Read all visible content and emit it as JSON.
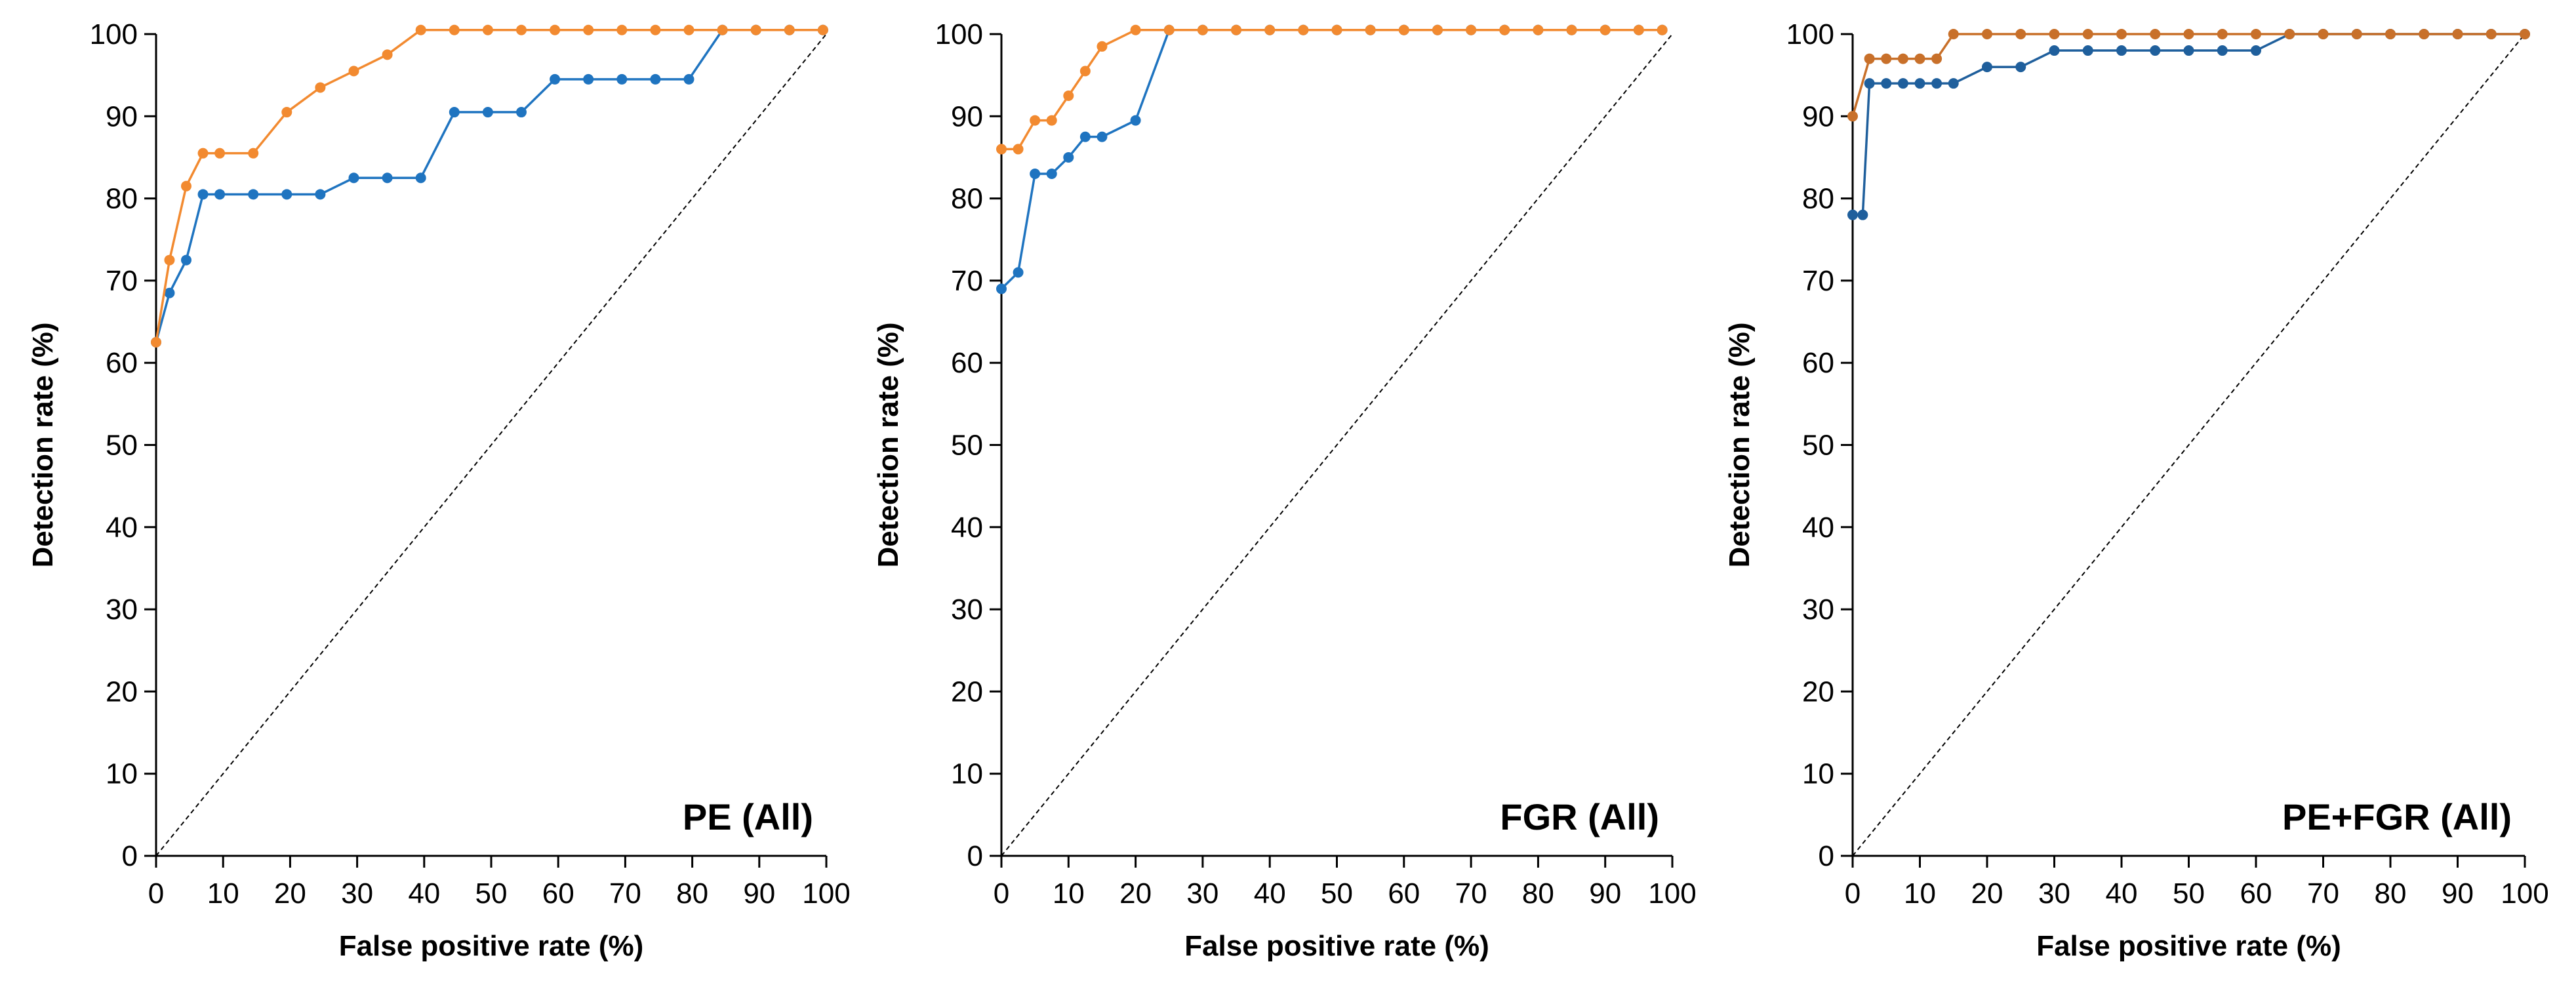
{
  "chart_data": [
    {
      "type": "line",
      "title": "PE (All)",
      "xlabel": "False positive rate (%)",
      "ylabel": "Detection rate (%)",
      "xlim": [
        0,
        100
      ],
      "ylim": [
        0,
        100
      ],
      "xticks": [
        "0",
        "10",
        "20",
        "30",
        "40",
        "50",
        "60",
        "70",
        "80",
        "90",
        "100"
      ],
      "yticks": [
        "0",
        "10",
        "20",
        "30",
        "40",
        "50",
        "60",
        "70",
        "80",
        "90",
        "100"
      ],
      "reference_line": {
        "from": [
          0,
          0
        ],
        "to": [
          100,
          100
        ],
        "style": "dashed"
      },
      "series": [
        {
          "name": "series-blue",
          "color": "#1f74c0",
          "points": [
            [
              0,
              62.5
            ],
            [
              2,
              68.5
            ],
            [
              4.5,
              72.5
            ],
            [
              7,
              80.5
            ],
            [
              9.5,
              80.5
            ],
            [
              14.5,
              80.5
            ],
            [
              19.5,
              80.5
            ],
            [
              24.5,
              80.5
            ],
            [
              29.5,
              82.5
            ],
            [
              34.5,
              82.5
            ],
            [
              39.5,
              82.5
            ],
            [
              44.5,
              90.5
            ],
            [
              49.5,
              90.5
            ],
            [
              54.5,
              90.5
            ],
            [
              59.5,
              94.5
            ],
            [
              64.5,
              94.5
            ],
            [
              69.5,
              94.5
            ],
            [
              74.5,
              94.5
            ],
            [
              79.5,
              94.5
            ],
            [
              84.5,
              100.5
            ],
            [
              89.5,
              100.5
            ],
            [
              94.5,
              100.5
            ],
            [
              99.5,
              100.5
            ]
          ]
        },
        {
          "name": "series-orange",
          "color": "#f28a30",
          "points": [
            [
              0,
              62.5
            ],
            [
              2,
              72.5
            ],
            [
              4.5,
              81.5
            ],
            [
              7,
              85.5
            ],
            [
              9.5,
              85.5
            ],
            [
              14.5,
              85.5
            ],
            [
              19.5,
              90.5
            ],
            [
              24.5,
              93.5
            ],
            [
              29.5,
              95.5
            ],
            [
              34.5,
              97.5
            ],
            [
              39.5,
              100.5
            ],
            [
              44.5,
              100.5
            ],
            [
              49.5,
              100.5
            ],
            [
              54.5,
              100.5
            ],
            [
              59.5,
              100.5
            ],
            [
              64.5,
              100.5
            ],
            [
              69.5,
              100.5
            ],
            [
              74.5,
              100.5
            ],
            [
              79.5,
              100.5
            ],
            [
              84.5,
              100.5
            ],
            [
              89.5,
              100.5
            ],
            [
              94.5,
              100.5
            ],
            [
              99.5,
              100.5
            ]
          ]
        }
      ]
    },
    {
      "type": "line",
      "title": "FGR (All)",
      "xlabel": "False positive rate (%)",
      "ylabel": "Detection rate (%)",
      "xlim": [
        0,
        100
      ],
      "ylim": [
        0,
        100
      ],
      "xticks": [
        "0",
        "10",
        "20",
        "30",
        "40",
        "50",
        "60",
        "70",
        "80",
        "90",
        "100"
      ],
      "yticks": [
        "0",
        "10",
        "20",
        "30",
        "40",
        "50",
        "60",
        "70",
        "80",
        "90",
        "100"
      ],
      "reference_line": {
        "from": [
          0,
          0
        ],
        "to": [
          100,
          100
        ],
        "style": "dashed"
      },
      "series": [
        {
          "name": "series-blue",
          "color": "#1f74c0",
          "points": [
            [
              0,
              69
            ],
            [
              2.5,
              71
            ],
            [
              5,
              83
            ],
            [
              7.5,
              83
            ],
            [
              10,
              85
            ],
            [
              12.5,
              87.5
            ],
            [
              15,
              87.5
            ],
            [
              20,
              89.5
            ],
            [
              25,
              100.5
            ],
            [
              30,
              100.5
            ],
            [
              35,
              100.5
            ],
            [
              40,
              100.5
            ],
            [
              45,
              100.5
            ],
            [
              50,
              100.5
            ],
            [
              55,
              100.5
            ],
            [
              60,
              100.5
            ],
            [
              65,
              100.5
            ],
            [
              70,
              100.5
            ],
            [
              75,
              100.5
            ],
            [
              80,
              100.5
            ],
            [
              85,
              100.5
            ],
            [
              90,
              100.5
            ],
            [
              95,
              100.5
            ],
            [
              98.5,
              100.5
            ]
          ]
        },
        {
          "name": "series-orange",
          "color": "#f28a30",
          "points": [
            [
              0,
              86
            ],
            [
              2.5,
              86
            ],
            [
              5,
              89.5
            ],
            [
              7.5,
              89.5
            ],
            [
              10,
              92.5
            ],
            [
              12.5,
              95.5
            ],
            [
              15,
              98.5
            ],
            [
              20,
              100.5
            ],
            [
              25,
              100.5
            ],
            [
              30,
              100.5
            ],
            [
              35,
              100.5
            ],
            [
              40,
              100.5
            ],
            [
              45,
              100.5
            ],
            [
              50,
              100.5
            ],
            [
              55,
              100.5
            ],
            [
              60,
              100.5
            ],
            [
              65,
              100.5
            ],
            [
              70,
              100.5
            ],
            [
              75,
              100.5
            ],
            [
              80,
              100.5
            ],
            [
              85,
              100.5
            ],
            [
              90,
              100.5
            ],
            [
              95,
              100.5
            ],
            [
              98.5,
              100.5
            ]
          ]
        }
      ]
    },
    {
      "type": "line",
      "title": "PE+FGR (All)",
      "xlabel": "False positive rate (%)",
      "ylabel": "Detection rate (%)",
      "xlim": [
        0,
        100
      ],
      "ylim": [
        0,
        100
      ],
      "xticks": [
        "0",
        "10",
        "20",
        "30",
        "40",
        "50",
        "60",
        "70",
        "80",
        "90",
        "100"
      ],
      "yticks": [
        "0",
        "10",
        "20",
        "30",
        "40",
        "50",
        "60",
        "70",
        "80",
        "90",
        "100"
      ],
      "reference_line": {
        "from": [
          0,
          0
        ],
        "to": [
          100,
          100
        ],
        "style": "dashed"
      },
      "series": [
        {
          "name": "series-blue",
          "color": "#1f5f9c",
          "points": [
            [
              0,
              78
            ],
            [
              1.5,
              78
            ],
            [
              2.5,
              94
            ],
            [
              5,
              94
            ],
            [
              7.5,
              94
            ],
            [
              10,
              94
            ],
            [
              12.5,
              94
            ],
            [
              15,
              94
            ],
            [
              20,
              96
            ],
            [
              25,
              96
            ],
            [
              30,
              98
            ],
            [
              35,
              98
            ],
            [
              40,
              98
            ],
            [
              45,
              98
            ],
            [
              50,
              98
            ],
            [
              55,
              98
            ],
            [
              60,
              98
            ],
            [
              65,
              100
            ],
            [
              70,
              100
            ],
            [
              75,
              100
            ],
            [
              80,
              100
            ],
            [
              85,
              100
            ],
            [
              90,
              100
            ],
            [
              95,
              100
            ],
            [
              100,
              100
            ]
          ]
        },
        {
          "name": "series-orange",
          "color": "#c8702a",
          "points": [
            [
              0,
              90
            ],
            [
              2.5,
              97
            ],
            [
              5,
              97
            ],
            [
              7.5,
              97
            ],
            [
              10,
              97
            ],
            [
              12.5,
              97
            ],
            [
              15,
              100
            ],
            [
              20,
              100
            ],
            [
              25,
              100
            ],
            [
              30,
              100
            ],
            [
              35,
              100
            ],
            [
              40,
              100
            ],
            [
              45,
              100
            ],
            [
              50,
              100
            ],
            [
              55,
              100
            ],
            [
              60,
              100
            ],
            [
              65,
              100
            ],
            [
              70,
              100
            ],
            [
              75,
              100
            ],
            [
              80,
              100
            ],
            [
              85,
              100
            ],
            [
              90,
              100
            ],
            [
              95,
              100
            ],
            [
              100,
              100
            ]
          ]
        }
      ]
    }
  ]
}
